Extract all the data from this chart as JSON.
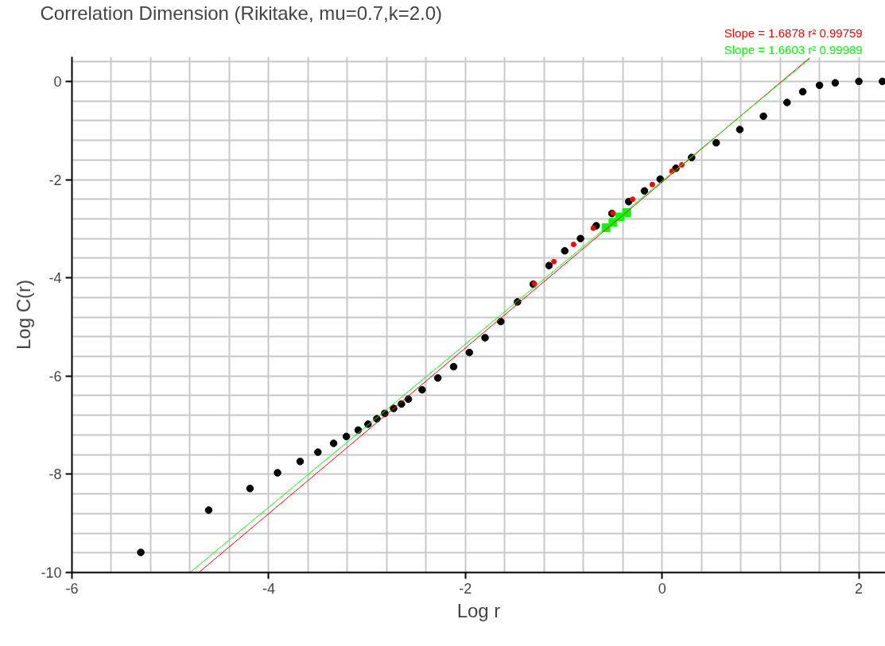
{
  "chart_data": {
    "type": "scatter",
    "title": "Correlation Dimension (Rikitake, mu=0.7,k=2.0)",
    "xlabel": "Log r",
    "ylabel": "Log C(r)",
    "xlim": [
      -6,
      2.27
    ],
    "ylim": [
      -10,
      0.5
    ],
    "xticks": [
      -6,
      {
        "value": -5.6,
        "label": null
      },
      {
        "value": -5.2,
        "label": null
      },
      {
        "value": -4.8,
        "label": null
      },
      {
        "value": -4.4,
        "label": null
      },
      -4,
      {
        "value": -3.6,
        "label": null
      },
      {
        "value": -3.2,
        "label": null
      },
      {
        "value": -2.8,
        "label": null
      },
      {
        "value": -2.4,
        "label": null
      },
      -2,
      {
        "value": -1.6,
        "label": null
      },
      {
        "value": -1.2,
        "label": null
      },
      {
        "value": -0.8,
        "label": null
      },
      {
        "value": -0.4,
        "label": null
      },
      0,
      {
        "value": 0.4,
        "label": null
      },
      {
        "value": 0.8,
        "label": null
      },
      {
        "value": 1.2,
        "label": null
      },
      {
        "value": 1.6,
        "label": null
      },
      2
    ],
    "yticks": [
      -10,
      {
        "value": -9.6,
        "label": null
      },
      {
        "value": -9.2,
        "label": null
      },
      {
        "value": -8.8,
        "label": null
      },
      {
        "value": -8.4,
        "label": null
      },
      -8,
      {
        "value": -7.6,
        "label": null
      },
      {
        "value": -7.2,
        "label": null
      },
      {
        "value": -6.8,
        "label": null
      },
      {
        "value": -6.4,
        "label": null
      },
      -6,
      {
        "value": -5.6,
        "label": null
      },
      {
        "value": -5.2,
        "label": null
      },
      {
        "value": -4.8,
        "label": null
      },
      {
        "value": -4.4,
        "label": null
      },
      -4,
      {
        "value": -3.6,
        "label": null
      },
      {
        "value": -3.2,
        "label": null
      },
      {
        "value": -2.8,
        "label": null
      },
      {
        "value": -2.4,
        "label": null
      },
      -2,
      {
        "value": -1.6,
        "label": null
      },
      {
        "value": -1.2,
        "label": null
      },
      {
        "value": -0.8,
        "label": null
      },
      {
        "value": -0.4,
        "label": null
      },
      0,
      {
        "value": 0.4,
        "label": null
      }
    ],
    "grid": true,
    "marker": "circle",
    "series": [
      {
        "color": "#000000",
        "x": [
          -5.3,
          -4.61,
          -4.19,
          -3.91,
          -3.68,
          -3.5,
          -3.34,
          -3.21,
          -3.09,
          -2.99,
          -2.9,
          -2.82,
          -2.73,
          -2.65,
          -2.58,
          -2.44,
          -2.28,
          -2.12,
          -1.96,
          -1.8,
          -1.64,
          -1.47,
          -1.31,
          -1.15,
          -0.99,
          -0.83,
          -0.67,
          -0.51,
          -0.34,
          -0.18,
          -0.02,
          0.14,
          0.3,
          0.55,
          0.79,
          1.03,
          1.27,
          1.43,
          1.6,
          1.76,
          2.0,
          2.24
        ],
        "values": [
          -9.59,
          -8.73,
          -8.29,
          -7.97,
          -7.74,
          -7.55,
          -7.37,
          -7.23,
          -7.1,
          -6.98,
          -6.87,
          -6.76,
          -6.66,
          -6.57,
          -6.47,
          -6.28,
          -6.04,
          -5.81,
          -5.52,
          -5.22,
          -4.89,
          -4.49,
          -4.13,
          -3.75,
          -3.45,
          -3.2,
          -2.94,
          -2.69,
          -2.45,
          -2.23,
          -1.99,
          -1.77,
          -1.55,
          -1.25,
          -0.98,
          -0.71,
          -0.43,
          -0.21,
          -0.08,
          -0.03,
          0.0,
          0.0
        ]
      },
      {
        "color": "#ff0000",
        "x": [
          -1.3,
          -1.1,
          -0.9,
          -0.7,
          -0.5,
          -0.3,
          -0.1,
          0.1,
          0.2
        ],
        "values": [
          -4.12,
          -3.67,
          -3.32,
          -2.99,
          -2.68,
          -2.4,
          -2.1,
          -1.83,
          -1.7
        ]
      },
      {
        "color": "#00ff00",
        "marker": "square",
        "x": [
          -0.57,
          -0.5,
          -0.43,
          -0.36
        ],
        "values": [
          -2.98,
          -2.87,
          -2.76,
          -2.67
        ]
      },
      {
        "type": "line",
        "name": "Slope = 1.6878      r² 0.99759",
        "color": "#ff0000",
        "marker": "none",
        "x": [
          -4.71,
          1.5
        ],
        "values": [
          -10.0,
          0.48
        ]
      },
      {
        "type": "line",
        "name": "Slope = 1.6603      r² 0.99989",
        "color": "#00ff00",
        "marker": "none",
        "x": [
          -4.8,
          1.5
        ],
        "values": [
          -10.0,
          0.46
        ]
      }
    ]
  }
}
